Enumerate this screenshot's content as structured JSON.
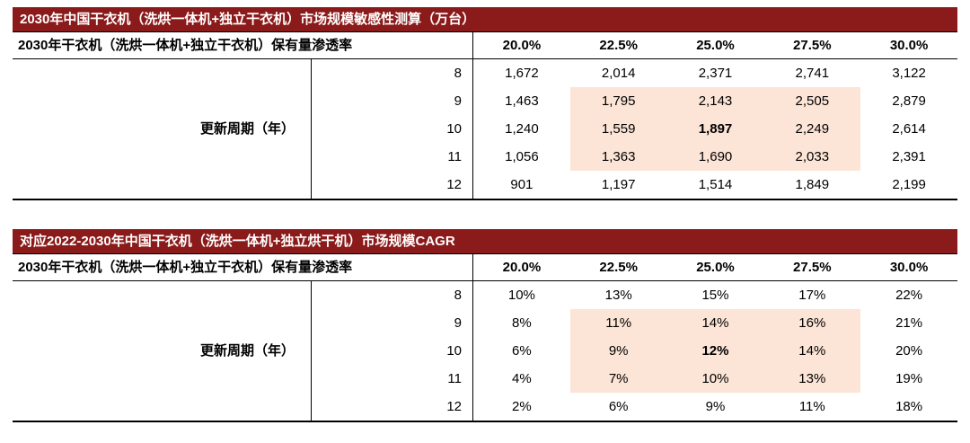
{
  "style": {
    "header_bar_bg": "#8B1A1A",
    "header_bar_text": "#FFFFFF",
    "highlight_bg": "#FCE4D6",
    "border_color": "#000000"
  },
  "chart_data": [
    {
      "type": "table",
      "title": "2030年中国干衣机（洗烘一体机+独立干衣机）市场规模敏感性测算（万台）",
      "unit": "万台",
      "row_header_label": "2030年干衣机（洗烘一体机+独立干衣机）保有量渗透率",
      "col_headers": [
        "20.0%",
        "22.5%",
        "25.0%",
        "27.5%",
        "30.0%"
      ],
      "side_label": "更新周期（年）",
      "row_labels": [
        "8",
        "9",
        "10",
        "11",
        "12"
      ],
      "rows": [
        [
          "1,672",
          "2,014",
          "2,371",
          "2,741",
          "3,122"
        ],
        [
          "1,463",
          "1,795",
          "2,143",
          "2,505",
          "2,879"
        ],
        [
          "1,240",
          "1,559",
          "1,897",
          "2,249",
          "2,614"
        ],
        [
          "1,056",
          "1,363",
          "1,690",
          "2,033",
          "2,391"
        ],
        [
          "901",
          "1,197",
          "1,514",
          "1,849",
          "2,199"
        ]
      ],
      "values_numeric": [
        [
          1672,
          2014,
          2371,
          2741,
          3122
        ],
        [
          1463,
          1795,
          2143,
          2505,
          2879
        ],
        [
          1240,
          1559,
          1897,
          2249,
          2614
        ],
        [
          1056,
          1363,
          1690,
          2033,
          2391
        ],
        [
          901,
          1197,
          1514,
          1849,
          2199
        ]
      ],
      "highlighted_block": {
        "row_labels": [
          "9",
          "10",
          "11"
        ],
        "col_headers": [
          "22.5%",
          "25.0%",
          "27.5%"
        ]
      },
      "bold_cell": {
        "row_label": "10",
        "col_header": "25.0%",
        "value": "1,897"
      }
    },
    {
      "type": "table",
      "title": "对应2022-2030年中国干衣机（洗烘一体机+独立烘干机）市场规模CAGR",
      "unit": "CAGR %",
      "row_header_label": "2030年干衣机（洗烘一体机+独立干衣机）保有量渗透率",
      "col_headers": [
        "20.0%",
        "22.5%",
        "25.0%",
        "27.5%",
        "30.0%"
      ],
      "side_label": "更新周期（年）",
      "row_labels": [
        "8",
        "9",
        "10",
        "11",
        "12"
      ],
      "rows": [
        [
          "10%",
          "13%",
          "15%",
          "17%",
          "22%"
        ],
        [
          "8%",
          "11%",
          "14%",
          "16%",
          "21%"
        ],
        [
          "6%",
          "9%",
          "12%",
          "14%",
          "20%"
        ],
        [
          "4%",
          "7%",
          "10%",
          "13%",
          "19%"
        ],
        [
          "2%",
          "6%",
          "9%",
          "11%",
          "18%"
        ]
      ],
      "values_numeric": [
        [
          10,
          13,
          15,
          17,
          22
        ],
        [
          8,
          11,
          14,
          16,
          21
        ],
        [
          6,
          9,
          12,
          14,
          20
        ],
        [
          4,
          7,
          10,
          13,
          19
        ],
        [
          2,
          6,
          9,
          11,
          18
        ]
      ],
      "highlighted_block": {
        "row_labels": [
          "9",
          "10",
          "11"
        ],
        "col_headers": [
          "22.5%",
          "25.0%",
          "27.5%"
        ]
      },
      "bold_cell": {
        "row_label": "10",
        "col_header": "25.0%",
        "value": "12%"
      }
    }
  ]
}
